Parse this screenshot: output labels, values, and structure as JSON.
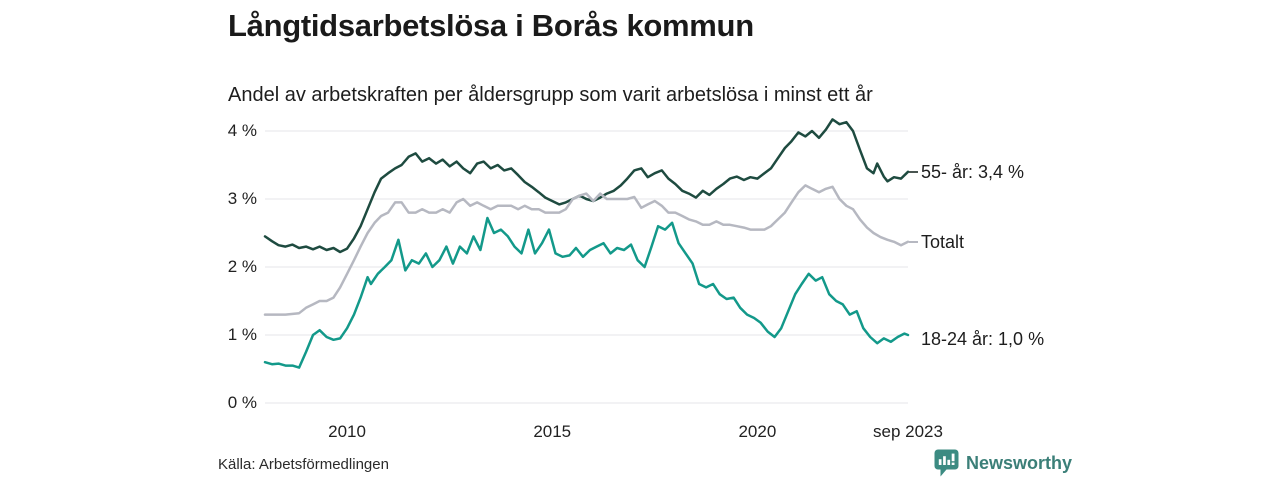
{
  "header": {
    "title": "Långtidsarbetslösa i Borås kommun",
    "subtitle": "Andel av arbetskraften per åldersgrupp som varit arbetslösa i minst ett år"
  },
  "footer": {
    "source": "Källa: Arbetsförmedlingen",
    "brand": "Newsworthy"
  },
  "colors": {
    "series_55": "#1e4b40",
    "series_total": "#b6b8c1",
    "series_18_24": "#13998a",
    "grid": "#e6e6e9",
    "brand": "#3c8b82",
    "text": "#1d1d1d"
  },
  "chart_data": {
    "type": "line",
    "title": "Långtidsarbetslösa i Borås kommun",
    "subtitle": "Andel av arbetskraften per åldersgrupp som varit arbetslösa i minst ett år",
    "grid": "horizontal-only",
    "grid_color": "#e6e6e9",
    "legend_position": "labels-at-line-ends-right",
    "y_axis": {
      "unit": "%",
      "ticks": [
        "0 %",
        "1 %",
        "2 %",
        "3 %",
        "4 %"
      ],
      "values": [
        0,
        1,
        2,
        3,
        4
      ],
      "range": [
        0,
        4.35
      ]
    },
    "x_axis": {
      "ticks": [
        "2010",
        "2015",
        "2020",
        "sep 2023"
      ],
      "tick_years": [
        2010,
        2015,
        2020,
        2023.67
      ],
      "range": [
        2008,
        2023.67
      ]
    },
    "series": [
      {
        "id": "55-ar",
        "name": "55- år",
        "label": "55- år: 3,4 %",
        "latest_value": "3,4 %",
        "color": "#1e4b40",
        "dash_color": "#4a5551",
        "points": [
          [
            2008.0,
            2.45
          ],
          [
            2008.17,
            2.38
          ],
          [
            2008.33,
            2.32
          ],
          [
            2008.5,
            2.3
          ],
          [
            2008.67,
            2.33
          ],
          [
            2008.83,
            2.28
          ],
          [
            2009.0,
            2.3
          ],
          [
            2009.17,
            2.26
          ],
          [
            2009.33,
            2.3
          ],
          [
            2009.5,
            2.25
          ],
          [
            2009.67,
            2.28
          ],
          [
            2009.83,
            2.22
          ],
          [
            2010.0,
            2.27
          ],
          [
            2010.17,
            2.42
          ],
          [
            2010.33,
            2.6
          ],
          [
            2010.5,
            2.85
          ],
          [
            2010.67,
            3.1
          ],
          [
            2010.83,
            3.3
          ],
          [
            2011.0,
            3.38
          ],
          [
            2011.17,
            3.45
          ],
          [
            2011.33,
            3.5
          ],
          [
            2011.5,
            3.62
          ],
          [
            2011.67,
            3.67
          ],
          [
            2011.83,
            3.55
          ],
          [
            2012.0,
            3.6
          ],
          [
            2012.17,
            3.52
          ],
          [
            2012.33,
            3.58
          ],
          [
            2012.5,
            3.48
          ],
          [
            2012.67,
            3.55
          ],
          [
            2012.83,
            3.45
          ],
          [
            2013.0,
            3.38
          ],
          [
            2013.17,
            3.52
          ],
          [
            2013.33,
            3.55
          ],
          [
            2013.5,
            3.45
          ],
          [
            2013.67,
            3.5
          ],
          [
            2013.83,
            3.42
          ],
          [
            2014.0,
            3.45
          ],
          [
            2014.17,
            3.35
          ],
          [
            2014.33,
            3.25
          ],
          [
            2014.5,
            3.18
          ],
          [
            2014.67,
            3.1
          ],
          [
            2014.83,
            3.02
          ],
          [
            2015.0,
            2.97
          ],
          [
            2015.17,
            2.92
          ],
          [
            2015.33,
            2.95
          ],
          [
            2015.5,
            3.0
          ],
          [
            2015.67,
            3.05
          ],
          [
            2015.83,
            3.0
          ],
          [
            2016.0,
            2.97
          ],
          [
            2016.17,
            3.02
          ],
          [
            2016.33,
            3.08
          ],
          [
            2016.5,
            3.12
          ],
          [
            2016.67,
            3.2
          ],
          [
            2016.83,
            3.3
          ],
          [
            2017.0,
            3.42
          ],
          [
            2017.17,
            3.45
          ],
          [
            2017.33,
            3.32
          ],
          [
            2017.5,
            3.38
          ],
          [
            2017.67,
            3.42
          ],
          [
            2017.83,
            3.3
          ],
          [
            2018.0,
            3.22
          ],
          [
            2018.17,
            3.12
          ],
          [
            2018.33,
            3.08
          ],
          [
            2018.5,
            3.02
          ],
          [
            2018.67,
            3.12
          ],
          [
            2018.83,
            3.06
          ],
          [
            2019.0,
            3.15
          ],
          [
            2019.17,
            3.22
          ],
          [
            2019.33,
            3.3
          ],
          [
            2019.5,
            3.33
          ],
          [
            2019.67,
            3.28
          ],
          [
            2019.83,
            3.32
          ],
          [
            2020.0,
            3.3
          ],
          [
            2020.17,
            3.38
          ],
          [
            2020.33,
            3.45
          ],
          [
            2020.5,
            3.6
          ],
          [
            2020.67,
            3.75
          ],
          [
            2020.83,
            3.85
          ],
          [
            2021.0,
            3.98
          ],
          [
            2021.17,
            3.92
          ],
          [
            2021.33,
            4.0
          ],
          [
            2021.5,
            3.9
          ],
          [
            2021.67,
            4.02
          ],
          [
            2021.83,
            4.17
          ],
          [
            2022.0,
            4.1
          ],
          [
            2022.17,
            4.13
          ],
          [
            2022.33,
            4.0
          ],
          [
            2022.5,
            3.72
          ],
          [
            2022.67,
            3.45
          ],
          [
            2022.83,
            3.38
          ],
          [
            2022.92,
            3.52
          ],
          [
            2023.08,
            3.33
          ],
          [
            2023.17,
            3.26
          ],
          [
            2023.33,
            3.32
          ],
          [
            2023.5,
            3.3
          ],
          [
            2023.67,
            3.4
          ]
        ]
      },
      {
        "id": "totalt",
        "name": "Totalt",
        "label": "Totalt",
        "color": "#b6b8c1",
        "dash_color": "#b6b8c1",
        "points": [
          [
            2008.0,
            1.3
          ],
          [
            2008.25,
            1.3
          ],
          [
            2008.5,
            1.3
          ],
          [
            2008.83,
            1.32
          ],
          [
            2009.0,
            1.4
          ],
          [
            2009.17,
            1.45
          ],
          [
            2009.33,
            1.5
          ],
          [
            2009.5,
            1.5
          ],
          [
            2009.67,
            1.55
          ],
          [
            2009.83,
            1.7
          ],
          [
            2010.0,
            1.9
          ],
          [
            2010.17,
            2.1
          ],
          [
            2010.33,
            2.3
          ],
          [
            2010.5,
            2.5
          ],
          [
            2010.67,
            2.65
          ],
          [
            2010.83,
            2.75
          ],
          [
            2011.0,
            2.8
          ],
          [
            2011.17,
            2.95
          ],
          [
            2011.33,
            2.95
          ],
          [
            2011.5,
            2.8
          ],
          [
            2011.67,
            2.8
          ],
          [
            2011.83,
            2.85
          ],
          [
            2012.0,
            2.8
          ],
          [
            2012.17,
            2.8
          ],
          [
            2012.33,
            2.85
          ],
          [
            2012.5,
            2.8
          ],
          [
            2012.67,
            2.95
          ],
          [
            2012.83,
            3.0
          ],
          [
            2013.0,
            2.9
          ],
          [
            2013.17,
            2.95
          ],
          [
            2013.33,
            2.9
          ],
          [
            2013.5,
            2.85
          ],
          [
            2013.67,
            2.9
          ],
          [
            2013.83,
            2.9
          ],
          [
            2014.0,
            2.9
          ],
          [
            2014.17,
            2.85
          ],
          [
            2014.33,
            2.9
          ],
          [
            2014.5,
            2.85
          ],
          [
            2014.67,
            2.85
          ],
          [
            2014.83,
            2.8
          ],
          [
            2015.0,
            2.8
          ],
          [
            2015.17,
            2.8
          ],
          [
            2015.33,
            2.85
          ],
          [
            2015.5,
            3.0
          ],
          [
            2015.67,
            3.05
          ],
          [
            2015.83,
            3.08
          ],
          [
            2016.0,
            2.97
          ],
          [
            2016.17,
            3.08
          ],
          [
            2016.33,
            3.0
          ],
          [
            2016.5,
            3.0
          ],
          [
            2016.67,
            3.0
          ],
          [
            2016.83,
            3.0
          ],
          [
            2017.0,
            3.03
          ],
          [
            2017.17,
            2.87
          ],
          [
            2017.33,
            2.92
          ],
          [
            2017.5,
            2.97
          ],
          [
            2017.67,
            2.9
          ],
          [
            2017.83,
            2.8
          ],
          [
            2018.0,
            2.8
          ],
          [
            2018.17,
            2.75
          ],
          [
            2018.33,
            2.7
          ],
          [
            2018.5,
            2.67
          ],
          [
            2018.67,
            2.62
          ],
          [
            2018.83,
            2.62
          ],
          [
            2019.0,
            2.67
          ],
          [
            2019.17,
            2.62
          ],
          [
            2019.33,
            2.62
          ],
          [
            2019.5,
            2.6
          ],
          [
            2019.67,
            2.58
          ],
          [
            2019.83,
            2.55
          ],
          [
            2020.0,
            2.55
          ],
          [
            2020.17,
            2.55
          ],
          [
            2020.33,
            2.6
          ],
          [
            2020.5,
            2.7
          ],
          [
            2020.67,
            2.8
          ],
          [
            2020.83,
            2.95
          ],
          [
            2021.0,
            3.1
          ],
          [
            2021.17,
            3.2
          ],
          [
            2021.33,
            3.15
          ],
          [
            2021.5,
            3.1
          ],
          [
            2021.67,
            3.15
          ],
          [
            2021.83,
            3.18
          ],
          [
            2022.0,
            3.0
          ],
          [
            2022.17,
            2.9
          ],
          [
            2022.33,
            2.85
          ],
          [
            2022.5,
            2.7
          ],
          [
            2022.67,
            2.58
          ],
          [
            2022.83,
            2.5
          ],
          [
            2023.0,
            2.44
          ],
          [
            2023.17,
            2.4
          ],
          [
            2023.33,
            2.37
          ],
          [
            2023.5,
            2.32
          ],
          [
            2023.67,
            2.37
          ]
        ]
      },
      {
        "id": "18-24-ar",
        "name": "18-24 år",
        "label": "18-24 år: 1,0 %",
        "latest_value": "1,0 %",
        "color": "#13998a",
        "dash_color": "#13998a",
        "points": [
          [
            2008.0,
            0.6
          ],
          [
            2008.17,
            0.57
          ],
          [
            2008.33,
            0.58
          ],
          [
            2008.5,
            0.55
          ],
          [
            2008.67,
            0.55
          ],
          [
            2008.83,
            0.52
          ],
          [
            2009.0,
            0.75
          ],
          [
            2009.17,
            1.0
          ],
          [
            2009.33,
            1.07
          ],
          [
            2009.5,
            0.97
          ],
          [
            2009.67,
            0.93
          ],
          [
            2009.83,
            0.95
          ],
          [
            2010.0,
            1.1
          ],
          [
            2010.17,
            1.3
          ],
          [
            2010.33,
            1.55
          ],
          [
            2010.5,
            1.85
          ],
          [
            2010.58,
            1.75
          ],
          [
            2010.75,
            1.9
          ],
          [
            2010.92,
            2.0
          ],
          [
            2011.08,
            2.1
          ],
          [
            2011.25,
            2.4
          ],
          [
            2011.42,
            1.95
          ],
          [
            2011.58,
            2.1
          ],
          [
            2011.75,
            2.05
          ],
          [
            2011.92,
            2.2
          ],
          [
            2012.08,
            2.0
          ],
          [
            2012.25,
            2.1
          ],
          [
            2012.42,
            2.3
          ],
          [
            2012.58,
            2.05
          ],
          [
            2012.75,
            2.3
          ],
          [
            2012.92,
            2.2
          ],
          [
            2013.08,
            2.45
          ],
          [
            2013.25,
            2.25
          ],
          [
            2013.42,
            2.72
          ],
          [
            2013.58,
            2.5
          ],
          [
            2013.75,
            2.55
          ],
          [
            2013.92,
            2.45
          ],
          [
            2014.08,
            2.3
          ],
          [
            2014.25,
            2.2
          ],
          [
            2014.42,
            2.55
          ],
          [
            2014.58,
            2.2
          ],
          [
            2014.75,
            2.35
          ],
          [
            2014.92,
            2.55
          ],
          [
            2015.08,
            2.2
          ],
          [
            2015.25,
            2.15
          ],
          [
            2015.42,
            2.17
          ],
          [
            2015.58,
            2.28
          ],
          [
            2015.75,
            2.15
          ],
          [
            2015.92,
            2.25
          ],
          [
            2016.08,
            2.3
          ],
          [
            2016.25,
            2.35
          ],
          [
            2016.42,
            2.2
          ],
          [
            2016.58,
            2.28
          ],
          [
            2016.75,
            2.25
          ],
          [
            2016.92,
            2.33
          ],
          [
            2017.08,
            2.1
          ],
          [
            2017.25,
            2.0
          ],
          [
            2017.42,
            2.3
          ],
          [
            2017.58,
            2.6
          ],
          [
            2017.75,
            2.55
          ],
          [
            2017.92,
            2.65
          ],
          [
            2018.08,
            2.35
          ],
          [
            2018.25,
            2.2
          ],
          [
            2018.42,
            2.05
          ],
          [
            2018.58,
            1.75
          ],
          [
            2018.75,
            1.7
          ],
          [
            2018.92,
            1.75
          ],
          [
            2019.08,
            1.6
          ],
          [
            2019.25,
            1.53
          ],
          [
            2019.42,
            1.55
          ],
          [
            2019.58,
            1.4
          ],
          [
            2019.75,
            1.3
          ],
          [
            2019.92,
            1.25
          ],
          [
            2020.08,
            1.18
          ],
          [
            2020.25,
            1.05
          ],
          [
            2020.42,
            0.97
          ],
          [
            2020.58,
            1.1
          ],
          [
            2020.75,
            1.35
          ],
          [
            2020.92,
            1.6
          ],
          [
            2021.08,
            1.75
          ],
          [
            2021.25,
            1.9
          ],
          [
            2021.42,
            1.8
          ],
          [
            2021.58,
            1.85
          ],
          [
            2021.75,
            1.6
          ],
          [
            2021.92,
            1.5
          ],
          [
            2022.08,
            1.45
          ],
          [
            2022.25,
            1.3
          ],
          [
            2022.42,
            1.35
          ],
          [
            2022.58,
            1.1
          ],
          [
            2022.75,
            0.97
          ],
          [
            2022.92,
            0.88
          ],
          [
            2023.08,
            0.95
          ],
          [
            2023.25,
            0.9
          ],
          [
            2023.42,
            0.97
          ],
          [
            2023.58,
            1.02
          ],
          [
            2023.67,
            1.0
          ]
        ]
      }
    ]
  }
}
